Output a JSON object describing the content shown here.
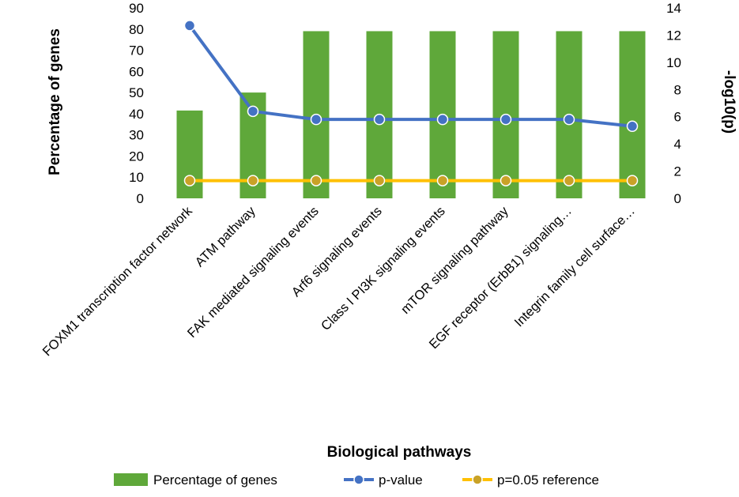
{
  "chart_data": {
    "type": "bar+line",
    "xlabel": "Biological pathways",
    "ylabel_left": "Percentage of genes",
    "ylabel_right": "-log10(p)",
    "ylim_left": [
      0,
      90
    ],
    "ylim_right": [
      0,
      14
    ],
    "yticks_left": [
      "0",
      "10",
      "20",
      "30",
      "40",
      "50",
      "60",
      "70",
      "80",
      "90"
    ],
    "yticks_right": [
      "0",
      "2",
      "4",
      "6",
      "8",
      "10",
      "12",
      "14"
    ],
    "categories": [
      "FOXM1 transcription factor network",
      "ATM pathway",
      "FAK mediated signaling events",
      "Arf6 signaling events",
      "Class I PI3K signaling events",
      "mTOR signaling pathway",
      "EGF receptor (ErbB1) signaling…",
      "Integrin family cell surface…"
    ],
    "series": [
      {
        "name": "Percentage of genes",
        "type": "bar",
        "axis": "left",
        "color": "#5fa83a",
        "values": [
          41.5,
          50,
          79,
          79,
          79,
          79,
          79,
          79
        ]
      },
      {
        "name": "p-value",
        "type": "line",
        "axis": "right",
        "color": "#4472c4",
        "values": [
          12.7,
          6.4,
          5.8,
          5.8,
          5.8,
          5.8,
          5.8,
          5.3
        ]
      },
      {
        "name": "p=0.05 reference",
        "type": "line",
        "axis": "right",
        "color": "#ffc000",
        "marker_color": "#c9a227",
        "values": [
          1.3,
          1.3,
          1.3,
          1.3,
          1.3,
          1.3,
          1.3,
          1.3
        ]
      }
    ],
    "legend": [
      "Percentage of genes",
      "p-value",
      "p=0.05 reference"
    ],
    "legend_position": "bottom"
  }
}
